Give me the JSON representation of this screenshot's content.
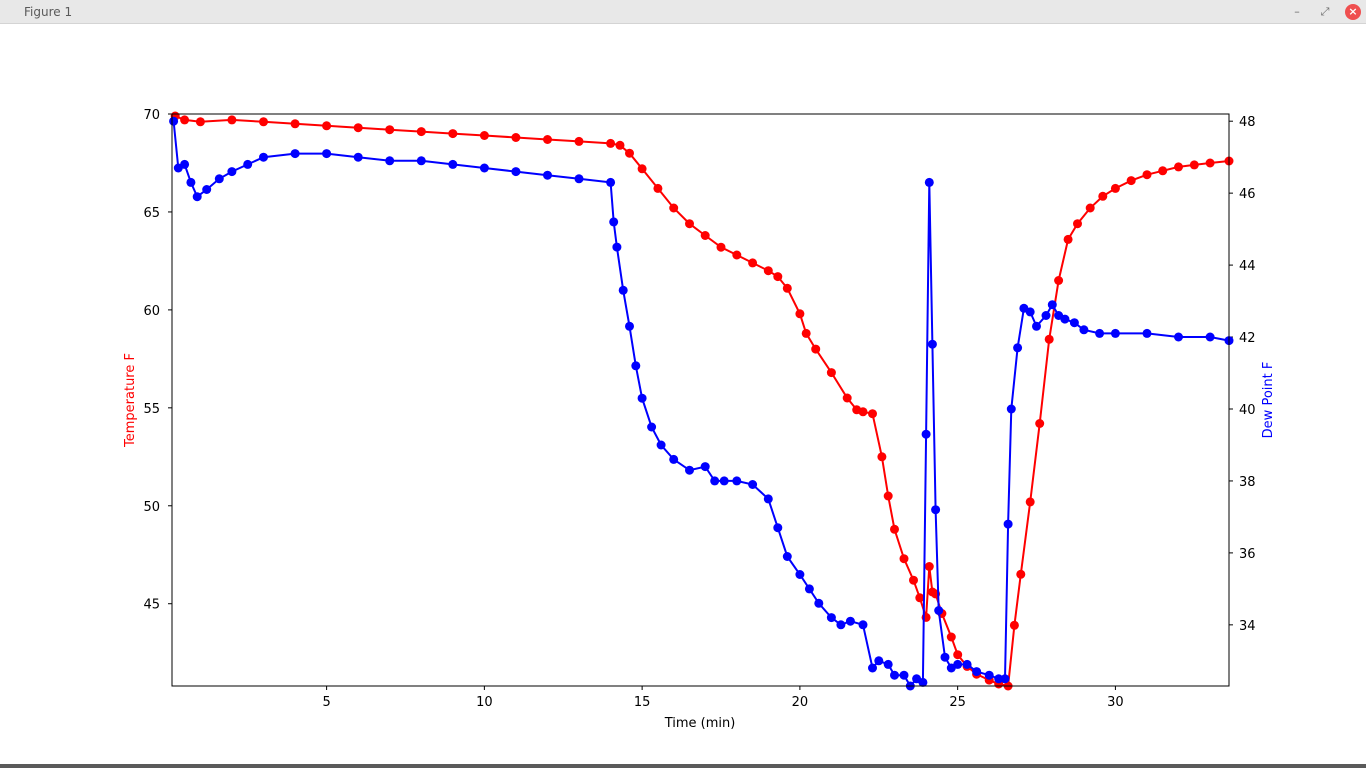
{
  "window": {
    "title": "Figure 1",
    "minimize_icon": "minimize-icon",
    "maximize_icon": "maximize-icon",
    "close_icon": "close-icon",
    "close_color": "#ef4f4f"
  },
  "chart_data": {
    "type": "line",
    "title": "",
    "xlabel": "Time (min)",
    "ylabel_left": "Temperature F",
    "ylabel_right": "Dew Point F",
    "xlim": [
      0.1,
      33.6
    ],
    "ylim_left": [
      40.8,
      70
    ],
    "ylim_right": [
      32.3,
      48.2
    ],
    "xticks": [
      5,
      10,
      15,
      20,
      25,
      30
    ],
    "yticks_left": [
      45,
      50,
      55,
      60,
      65,
      70
    ],
    "yticks_right": [
      34,
      36,
      38,
      40,
      42,
      44,
      46,
      48
    ],
    "grid": false,
    "legend": "none",
    "series": [
      {
        "axis": "left",
        "color": "#ff0000",
        "marker": "circle",
        "x": [
          0.2,
          0.5,
          1,
          2,
          3,
          4,
          5,
          6,
          7,
          8,
          9,
          10,
          11,
          12,
          13,
          14,
          14.3,
          14.6,
          15,
          15.5,
          16,
          16.5,
          17,
          17.5,
          18,
          18.5,
          19,
          19.3,
          19.6,
          20,
          20.2,
          20.5,
          21,
          21.5,
          21.8,
          22,
          22.3,
          22.6,
          22.8,
          23,
          23.3,
          23.6,
          23.8,
          24,
          24.1,
          24.2,
          24.3,
          24.5,
          24.8,
          25,
          25.3,
          25.6,
          26,
          26.3,
          26.6,
          26.8,
          27,
          27.3,
          27.6,
          27.9,
          28.2,
          28.5,
          28.8,
          29.2,
          29.6,
          30,
          30.5,
          31,
          31.5,
          32,
          32.5,
          33,
          33.6
        ],
        "y": [
          69.9,
          69.7,
          69.6,
          69.7,
          69.6,
          69.5,
          69.4,
          69.3,
          69.2,
          69.1,
          69,
          68.9,
          68.8,
          68.7,
          68.6,
          68.5,
          68.4,
          68.0,
          67.2,
          66.2,
          65.2,
          64.4,
          63.8,
          63.2,
          62.8,
          62.4,
          62.0,
          61.7,
          61.1,
          59.8,
          58.8,
          58.0,
          56.8,
          55.5,
          54.9,
          54.8,
          54.7,
          52.5,
          50.5,
          48.8,
          47.3,
          46.2,
          45.3,
          44.3,
          46.9,
          45.6,
          45.5,
          44.5,
          43.3,
          42.4,
          41.8,
          41.4,
          41.1,
          40.9,
          40.8,
          43.9,
          46.5,
          50.2,
          54.2,
          58.5,
          61.5,
          63.6,
          64.4,
          65.2,
          65.8,
          66.2,
          66.6,
          66.9,
          67.1,
          67.3,
          67.4,
          67.5,
          67.6
        ]
      },
      {
        "axis": "right",
        "color": "#0000ff",
        "marker": "circle",
        "x": [
          0.15,
          0.3,
          0.5,
          0.7,
          0.9,
          1.2,
          1.6,
          2,
          2.5,
          3,
          4,
          5,
          6,
          7,
          8,
          9,
          10,
          11,
          12,
          13,
          14,
          14.1,
          14.2,
          14.4,
          14.6,
          14.8,
          15,
          15.3,
          15.6,
          16,
          16.5,
          17,
          17.3,
          17.6,
          18,
          18.5,
          19,
          19.3,
          19.6,
          20,
          20.3,
          20.6,
          21,
          21.3,
          21.6,
          22,
          22.3,
          22.5,
          22.8,
          23,
          23.3,
          23.5,
          23.7,
          23.9,
          24,
          24.1,
          24.2,
          24.3,
          24.4,
          24.6,
          24.8,
          25,
          25.3,
          25.6,
          26,
          26.3,
          26.5,
          26.6,
          26.7,
          26.9,
          27.1,
          27.3,
          27.5,
          27.8,
          28,
          28.2,
          28.4,
          28.7,
          29,
          29.5,
          30,
          31,
          32,
          33,
          33.6
        ],
        "y": [
          48.0,
          46.7,
          46.8,
          46.3,
          45.9,
          46.1,
          46.4,
          46.6,
          46.8,
          47.0,
          47.1,
          47.1,
          47.0,
          46.9,
          46.9,
          46.8,
          46.7,
          46.6,
          46.5,
          46.4,
          46.3,
          45.2,
          44.5,
          43.3,
          42.3,
          41.2,
          40.3,
          39.5,
          39.0,
          38.6,
          38.3,
          38.4,
          38.0,
          38.0,
          38.0,
          37.9,
          37.5,
          36.7,
          35.9,
          35.4,
          35.0,
          34.6,
          34.2,
          34.0,
          34.1,
          34.0,
          32.8,
          33.0,
          32.9,
          32.6,
          32.6,
          32.3,
          32.5,
          32.4,
          39.3,
          46.3,
          41.8,
          37.2,
          34.4,
          33.1,
          32.8,
          32.9,
          32.9,
          32.7,
          32.6,
          32.5,
          32.5,
          36.8,
          40.0,
          41.7,
          42.8,
          42.7,
          42.3,
          42.6,
          42.9,
          42.6,
          42.5,
          42.4,
          42.2,
          42.1,
          42.1,
          42.1,
          42.0,
          42.0,
          41.9
        ]
      }
    ]
  }
}
